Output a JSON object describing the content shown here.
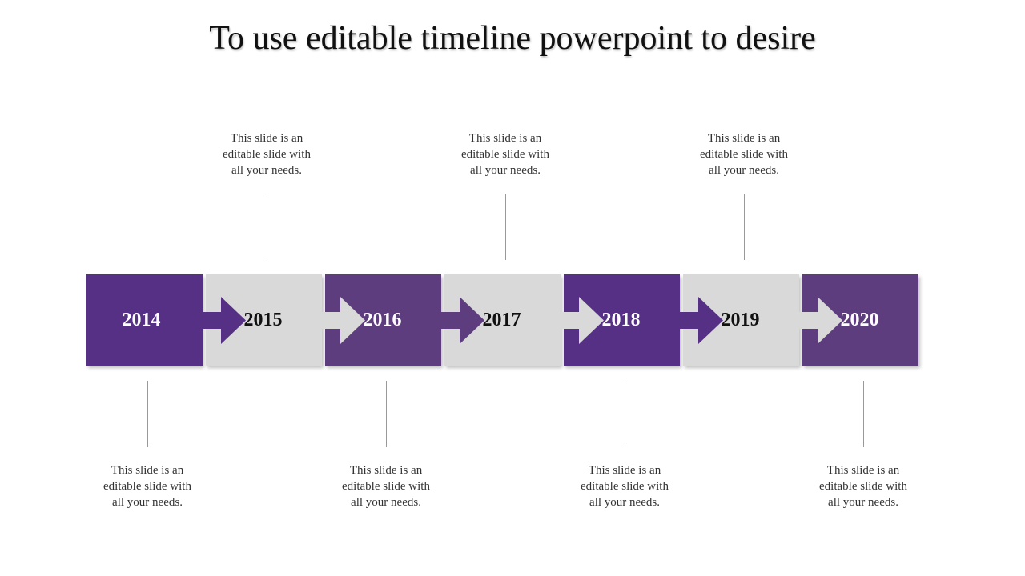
{
  "title": "To use editable timeline powerpoint to desire",
  "colors": {
    "purple_primary": "#553085",
    "purple_secondary": "#5e3d7f",
    "gray": "#d9d9d9",
    "text_dark": "#111111",
    "text_light": "#ffffff"
  },
  "milestones": [
    {
      "year": "2014",
      "style": "purple",
      "desc": [
        "This slide is an",
        "editable slide with",
        "all your needs."
      ]
    },
    {
      "year": "2015",
      "style": "gray",
      "desc": [
        "This slide is an",
        "editable slide with",
        "all your needs."
      ]
    },
    {
      "year": "2016",
      "style": "purple",
      "desc": [
        "This slide is an",
        "editable slide with",
        "all your needs."
      ]
    },
    {
      "year": "2017",
      "style": "gray",
      "desc": [
        "This slide is an",
        "editable slide with",
        "all your needs."
      ]
    },
    {
      "year": "2018",
      "style": "purple",
      "desc": [
        "This slide is an",
        "editable slide with",
        "all your needs."
      ]
    },
    {
      "year": "2019",
      "style": "gray",
      "desc": [
        "This slide is an",
        "editable slide with",
        "all your needs."
      ]
    },
    {
      "year": "2020",
      "style": "purple",
      "desc": [
        "This slide is an",
        "editable slide with",
        "all your needs."
      ]
    }
  ]
}
